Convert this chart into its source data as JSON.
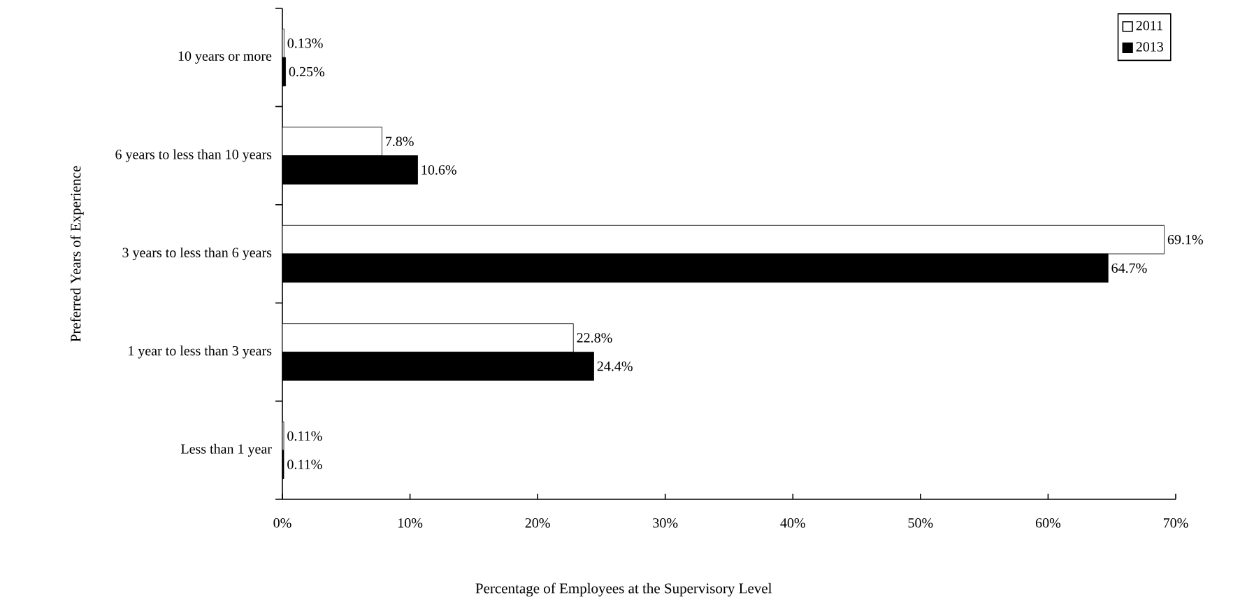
{
  "chart_data": {
    "type": "bar",
    "orientation": "horizontal",
    "xlabel": "Percentage of Employees at the Supervisory Level",
    "ylabel": "Preferred Years of Experience",
    "categories": [
      "10 years or more",
      "6 years to less than 10 years",
      "3 years to less than 6 years",
      "1 year to less than 3 years",
      "Less than 1 year"
    ],
    "series": [
      {
        "name": "2011",
        "color": "#ffffff",
        "values": [
          0.13,
          7.8,
          69.1,
          22.8,
          0.11
        ],
        "value_labels": [
          "0.13%",
          "7.8%",
          "69.1%",
          "22.8%",
          "0.11%"
        ]
      },
      {
        "name": "2013",
        "color": "#000000",
        "values": [
          0.25,
          10.6,
          64.7,
          24.4,
          0.11
        ],
        "value_labels": [
          "0.25%",
          "10.6%",
          "64.7%",
          "24.4%",
          "0.11%"
        ]
      }
    ],
    "xlim": [
      0,
      70
    ],
    "xticks": [
      {
        "value": 0,
        "label": "0%"
      },
      {
        "value": 10,
        "label": "10%"
      },
      {
        "value": 20,
        "label": "20%"
      },
      {
        "value": 30,
        "label": "30%"
      },
      {
        "value": 40,
        "label": "40%"
      },
      {
        "value": 50,
        "label": "50%"
      },
      {
        "value": 60,
        "label": "60%"
      },
      {
        "value": 70,
        "label": "70%"
      }
    ],
    "legend": "top right"
  }
}
